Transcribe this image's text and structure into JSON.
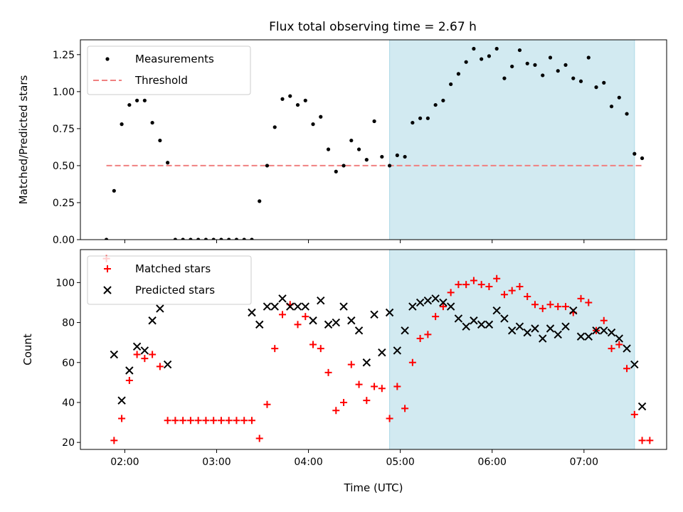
{
  "title": "Flux total observing time = 2.67 h",
  "colors": {
    "measure": "#000000",
    "threshold": "#f08080",
    "matched": "#ff0000",
    "predicted": "#000000",
    "shade": "#add8e6"
  },
  "chart_data": [
    {
      "type": "scatter",
      "ylabel": "Matched/Predicted stars",
      "ylim": [
        0,
        1.35
      ],
      "yticks": [
        "0.00",
        "0.25",
        "0.50",
        "0.75",
        "1.00",
        "1.25"
      ],
      "ytick_values": [
        0,
        0.25,
        0.5,
        0.75,
        1.0,
        1.25
      ],
      "legend": {
        "placement": "upper-left",
        "entries": [
          "Measurements",
          "Threshold"
        ]
      },
      "threshold": {
        "y": 0.5,
        "x_start": "01:48",
        "x_end": "07:38"
      },
      "shaded_region": {
        "x_start": "04:53",
        "x_end": "07:33"
      },
      "series": [
        {
          "name": "Measurements",
          "marker": "dot",
          "x": [
            "01:48",
            "01:53",
            "01:58",
            "02:03",
            "02:08",
            "02:13",
            "02:18",
            "02:23",
            "02:28",
            "02:33",
            "02:38",
            "02:43",
            "02:48",
            "02:53",
            "02:58",
            "03:03",
            "03:08",
            "03:13",
            "03:18",
            "03:23",
            "03:28",
            "03:33",
            "03:38",
            "03:43",
            "03:48",
            "03:53",
            "03:58",
            "04:03",
            "04:08",
            "04:13",
            "04:18",
            "04:23",
            "04:28",
            "04:33",
            "04:38",
            "04:43",
            "04:48",
            "04:53",
            "04:58",
            "05:03",
            "05:08",
            "05:13",
            "05:18",
            "05:23",
            "05:28",
            "05:33",
            "05:38",
            "05:43",
            "05:48",
            "05:53",
            "05:58",
            "06:03",
            "06:08",
            "06:13",
            "06:18",
            "06:23",
            "06:28",
            "06:33",
            "06:38",
            "06:43",
            "06:48",
            "06:53",
            "06:58",
            "07:03",
            "07:08",
            "07:13",
            "07:18",
            "07:23",
            "07:28",
            "07:33",
            "07:38"
          ],
          "values": [
            0.0,
            0.33,
            0.78,
            0.91,
            0.94,
            0.94,
            0.79,
            0.67,
            0.52,
            0.0,
            0.0,
            0.0,
            0.0,
            0.0,
            0.0,
            0.0,
            0.0,
            0.0,
            0.0,
            0.0,
            0.26,
            0.5,
            0.76,
            0.95,
            0.97,
            0.91,
            0.94,
            0.78,
            0.83,
            0.61,
            0.46,
            0.5,
            0.67,
            0.61,
            0.54,
            0.8,
            0.56,
            0.5,
            0.57,
            0.56,
            0.79,
            0.82,
            0.82,
            0.91,
            0.94,
            1.05,
            1.12,
            1.2,
            1.29,
            1.22,
            1.24,
            1.29,
            1.09,
            1.17,
            1.28,
            1.19,
            1.18,
            1.11,
            1.23,
            1.14,
            1.18,
            1.09,
            1.07,
            1.23,
            1.03,
            1.06,
            0.9,
            0.96,
            0.85,
            0.58,
            0.55
          ]
        }
      ]
    },
    {
      "type": "scatter",
      "xlabel": "Time (UTC)",
      "ylabel": "Count",
      "ylim": [
        16.5,
        116.5
      ],
      "yticks": [
        "20",
        "40",
        "60",
        "80",
        "100"
      ],
      "ytick_values": [
        20,
        40,
        60,
        80,
        100
      ],
      "xticks": [
        "02:00",
        "03:00",
        "04:00",
        "05:00",
        "06:00",
        "07:00"
      ],
      "xlim": [
        "01:31",
        "07:54"
      ],
      "legend": {
        "placement": "upper-left",
        "entries": [
          "Matched stars",
          "Predicted stars"
        ]
      },
      "shaded_region": {
        "x_start": "04:53",
        "x_end": "07:33"
      },
      "series": [
        {
          "name": "Matched stars",
          "marker": "plus",
          "x": [
            "01:48",
            "01:53",
            "01:58",
            "02:03",
            "02:08",
            "02:13",
            "02:18",
            "02:23",
            "02:28",
            "02:33",
            "02:38",
            "02:43",
            "02:48",
            "02:53",
            "02:58",
            "03:03",
            "03:08",
            "03:13",
            "03:18",
            "03:23",
            "03:28",
            "03:33",
            "03:38",
            "03:43",
            "03:48",
            "03:53",
            "03:58",
            "04:03",
            "04:08",
            "04:13",
            "04:18",
            "04:23",
            "04:28",
            "04:33",
            "04:38",
            "04:43",
            "04:48",
            "04:53",
            "04:58",
            "05:03",
            "05:08",
            "05:13",
            "05:18",
            "05:23",
            "05:28",
            "05:33",
            "05:38",
            "05:43",
            "05:48",
            "05:53",
            "05:58",
            "06:03",
            "06:08",
            "06:13",
            "06:18",
            "06:23",
            "06:28",
            "06:33",
            "06:38",
            "06:43",
            "06:48",
            "06:53",
            "06:58",
            "07:03",
            "07:08",
            "07:13",
            "07:18",
            "07:23",
            "07:28",
            "07:33",
            "07:38",
            "07:43"
          ],
          "values": [
            112,
            21,
            32,
            51,
            64,
            62,
            64,
            58,
            31,
            31,
            31,
            31,
            31,
            31,
            31,
            31,
            31,
            31,
            31,
            31,
            22,
            39,
            67,
            84,
            89,
            79,
            83,
            69,
            67,
            55,
            36,
            40,
            59,
            49,
            41,
            48,
            47,
            32,
            48,
            37,
            60,
            72,
            74,
            83,
            88,
            95,
            99,
            99,
            101,
            99,
            98,
            102,
            94,
            96,
            98,
            93,
            89,
            87,
            89,
            88,
            88,
            85,
            92,
            90,
            76,
            81,
            67,
            69,
            57,
            34,
            21,
            21
          ]
        },
        {
          "name": "Predicted stars",
          "marker": "x",
          "x": [
            "01:53",
            "01:58",
            "02:03",
            "02:08",
            "02:13",
            "02:18",
            "02:23",
            "02:28",
            "03:23",
            "03:28",
            "03:33",
            "03:38",
            "03:43",
            "03:48",
            "03:53",
            "03:58",
            "04:03",
            "04:08",
            "04:13",
            "04:18",
            "04:23",
            "04:28",
            "04:33",
            "04:38",
            "04:43",
            "04:48",
            "04:53",
            "04:58",
            "05:03",
            "05:08",
            "05:13",
            "05:18",
            "05:23",
            "05:28",
            "05:33",
            "05:38",
            "05:43",
            "05:48",
            "05:53",
            "05:58",
            "06:03",
            "06:08",
            "06:13",
            "06:18",
            "06:23",
            "06:28",
            "06:33",
            "06:38",
            "06:43",
            "06:48",
            "06:53",
            "06:58",
            "07:03",
            "07:08",
            "07:13",
            "07:18",
            "07:23",
            "07:28",
            "07:33",
            "07:38"
          ],
          "values": [
            64,
            41,
            56,
            68,
            66,
            81,
            87,
            59,
            85,
            79,
            88,
            88,
            92,
            88,
            88,
            88,
            81,
            91,
            79,
            80,
            88,
            81,
            76,
            60,
            84,
            65,
            85,
            66,
            76,
            88,
            90,
            91,
            92,
            90,
            88,
            82,
            78,
            81,
            79,
            79,
            86,
            82,
            76,
            78,
            75,
            77,
            72,
            77,
            74,
            78,
            86,
            73,
            73,
            76,
            76,
            75,
            72,
            67,
            59,
            38
          ]
        }
      ]
    }
  ]
}
